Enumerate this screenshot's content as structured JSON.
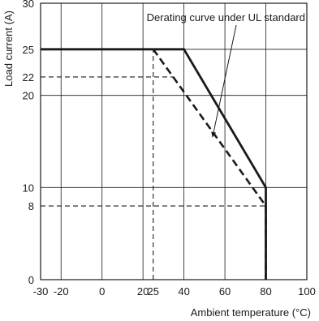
{
  "chart_data": {
    "type": "line",
    "title": "",
    "xlabel": "Ambient temperature (°C)",
    "ylabel": "Load current (A)",
    "xlim": [
      -30,
      100
    ],
    "ylim": [
      0,
      30
    ],
    "grid": true,
    "x_ticks": [
      {
        "value": -30,
        "label": "-30"
      },
      {
        "value": -20,
        "label": "-20"
      },
      {
        "value": 0,
        "label": "0"
      },
      {
        "value": 20,
        "label": "20"
      },
      {
        "value": 25,
        "label": "25"
      },
      {
        "value": 40,
        "label": "40"
      },
      {
        "value": 60,
        "label": "60"
      },
      {
        "value": 80,
        "label": "80"
      },
      {
        "value": 100,
        "label": "100"
      }
    ],
    "y_ticks": [
      {
        "value": 0,
        "label": "0"
      },
      {
        "value": 8,
        "label": "8"
      },
      {
        "value": 10,
        "label": "10"
      },
      {
        "value": 20,
        "label": "20"
      },
      {
        "value": 22,
        "label": "22"
      },
      {
        "value": 25,
        "label": "25"
      },
      {
        "value": 30,
        "label": "30"
      }
    ],
    "series": [
      {
        "style": "solid",
        "x": [
          -30,
          40,
          80,
          80
        ],
        "y": [
          25,
          25,
          10,
          0
        ]
      },
      {
        "name": "Derating curve under UL standard",
        "style": "dashed",
        "x": [
          25,
          80,
          80
        ],
        "y": [
          25,
          8,
          0
        ]
      }
    ],
    "reference_lines": [
      {
        "style": "dashed",
        "x": [
          -30,
          35
        ],
        "y": [
          22,
          22
        ]
      },
      {
        "style": "dashed",
        "x": [
          -30,
          80
        ],
        "y": [
          8,
          8
        ]
      },
      {
        "style": "dashed",
        "x": [
          25,
          25
        ],
        "y": [
          0,
          25
        ]
      }
    ],
    "annotation": {
      "text": "Derating curve under UL standard",
      "points_to": {
        "x": 54,
        "y": 15.5
      }
    },
    "colors": {
      "line": "#1a1a1a",
      "grid": "#1a1a1a",
      "background": "#ffffff"
    }
  }
}
